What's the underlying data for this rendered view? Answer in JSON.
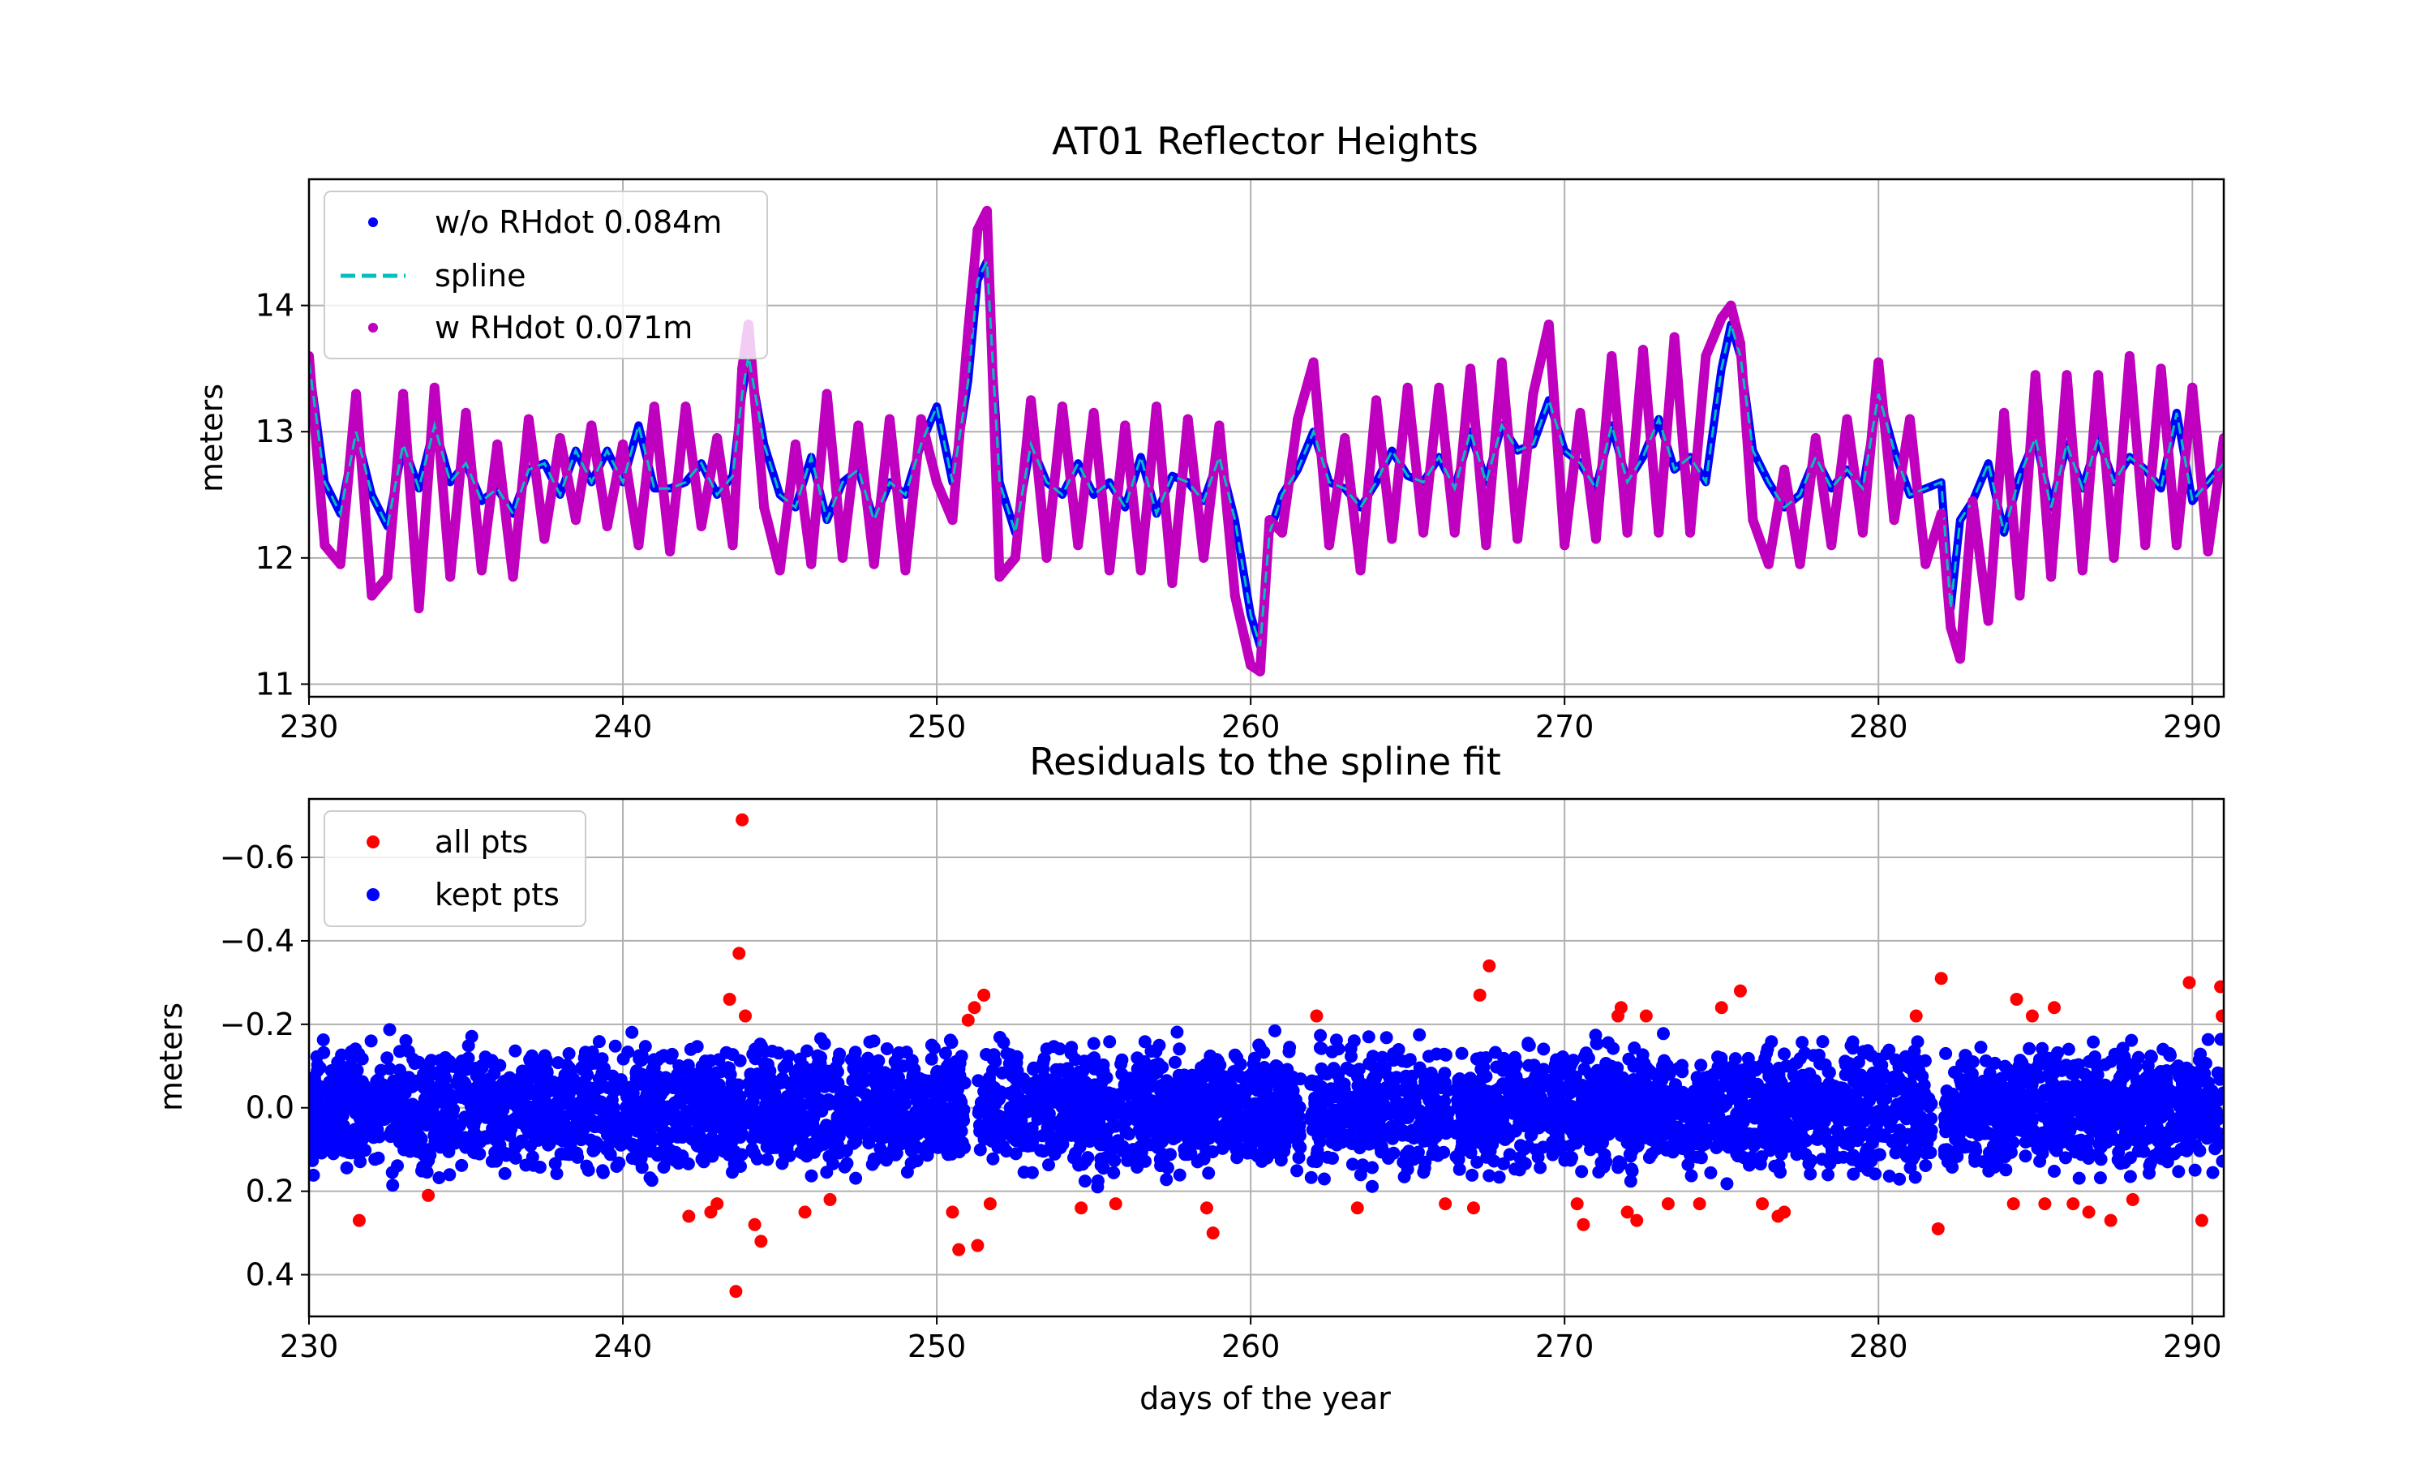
{
  "chart_data": [
    {
      "type": "scatter",
      "title": "AT01 Reflector Heights",
      "xlabel": "",
      "ylabel": "meters",
      "xlim": [
        230,
        291
      ],
      "ylim": [
        15,
        10.9
      ],
      "y_axis_inverted": true,
      "grid": true,
      "legend_placement": "top-left",
      "x_ticks": [
        230,
        240,
        250,
        260,
        270,
        280,
        290
      ],
      "y_ticks": [
        11,
        12,
        13,
        14
      ],
      "series": [
        {
          "name": "w/o RHdot 0.084m",
          "marker": "dot",
          "color": "#0000ff",
          "x": [
            230,
            230.5,
            231,
            231.5,
            232,
            232.5,
            233,
            233.5,
            234,
            234.5,
            235,
            235.5,
            236,
            236.5,
            237,
            237.5,
            238,
            238.5,
            239,
            239.5,
            240,
            240.5,
            241,
            241.5,
            242,
            242.5,
            243,
            243.5,
            243.8,
            244,
            244.5,
            245,
            245.5,
            246,
            246.5,
            247,
            247.5,
            248,
            248.5,
            249,
            249.5,
            250,
            250.5,
            251,
            251.3,
            251.6,
            252,
            252.5,
            253,
            253.5,
            254,
            254.5,
            255,
            255.5,
            256,
            256.5,
            257,
            257.5,
            258,
            258.5,
            259,
            259.5,
            260,
            260.3,
            260.6,
            261,
            261.5,
            262,
            262.5,
            263,
            263.5,
            264,
            264.5,
            265,
            265.5,
            266,
            266.5,
            267,
            267.5,
            268,
            268.5,
            269,
            269.5,
            270,
            270.5,
            271,
            271.5,
            272,
            272.5,
            273,
            273.5,
            274,
            274.5,
            275,
            275.3,
            275.6,
            276,
            276.5,
            277,
            277.5,
            278,
            278.5,
            279,
            279.5,
            280,
            280.5,
            281,
            281.5,
            282,
            282.3,
            282.6,
            283,
            283.5,
            284,
            284.5,
            285,
            285.5,
            286,
            286.5,
            287,
            287.5,
            288,
            288.5,
            289,
            289.5,
            290,
            290.5,
            291
          ],
          "y": [
            13.55,
            12.6,
            12.35,
            13.0,
            12.5,
            12.25,
            12.9,
            12.55,
            13.05,
            12.6,
            12.75,
            12.45,
            12.55,
            12.35,
            12.7,
            12.75,
            12.5,
            12.85,
            12.6,
            12.85,
            12.6,
            13.05,
            12.55,
            12.55,
            12.6,
            12.75,
            12.5,
            12.65,
            13.3,
            13.6,
            12.9,
            12.5,
            12.4,
            12.8,
            12.3,
            12.6,
            12.7,
            12.3,
            12.6,
            12.5,
            12.9,
            13.2,
            12.6,
            13.4,
            14.2,
            14.35,
            12.6,
            12.2,
            12.9,
            12.6,
            12.5,
            12.75,
            12.5,
            12.6,
            12.4,
            12.8,
            12.35,
            12.65,
            12.6,
            12.45,
            12.8,
            12.3,
            11.55,
            11.3,
            12.2,
            12.5,
            12.7,
            13.0,
            12.6,
            12.55,
            12.4,
            12.6,
            12.85,
            12.65,
            12.6,
            12.8,
            12.55,
            13.0,
            12.6,
            13.05,
            12.85,
            12.9,
            13.25,
            12.85,
            12.75,
            12.55,
            13.05,
            12.6,
            12.8,
            13.1,
            12.7,
            12.8,
            12.6,
            13.5,
            13.85,
            13.6,
            12.85,
            12.6,
            12.4,
            12.5,
            12.8,
            12.55,
            12.7,
            12.55,
            13.3,
            12.85,
            12.5,
            12.55,
            12.6,
            11.6,
            12.3,
            12.45,
            12.75,
            12.2,
            12.65,
            12.95,
            12.4,
            12.9,
            12.55,
            12.95,
            12.6,
            12.8,
            12.7,
            12.55,
            13.15,
            12.45,
            12.6,
            12.75
          ]
        },
        {
          "name": "spline",
          "line_style": "dashed",
          "color": "#00bfbf",
          "x": [
            230,
            230.5,
            231,
            231.5,
            232,
            232.5,
            233,
            233.5,
            234,
            234.5,
            235,
            235.5,
            236,
            236.5,
            237,
            237.5,
            238,
            238.5,
            239,
            239.5,
            240,
            240.5,
            241,
            241.5,
            242,
            242.5,
            243,
            243.5,
            243.8,
            244,
            244.5,
            245,
            245.5,
            246,
            246.5,
            247,
            247.5,
            248,
            248.5,
            249,
            249.5,
            250,
            250.5,
            251,
            251.3,
            251.6,
            252,
            252.5,
            253,
            253.5,
            254,
            254.5,
            255,
            255.5,
            256,
            256.5,
            257,
            257.5,
            258,
            258.5,
            259,
            259.5,
            260,
            260.3,
            260.6,
            261,
            261.5,
            262,
            262.5,
            263,
            263.5,
            264,
            264.5,
            265,
            265.5,
            266,
            266.5,
            267,
            267.5,
            268,
            268.5,
            269,
            269.5,
            270,
            270.5,
            271,
            271.5,
            272,
            272.5,
            273,
            273.5,
            274,
            274.5,
            275,
            275.3,
            275.6,
            276,
            276.5,
            277,
            277.5,
            278,
            278.5,
            279,
            279.5,
            280,
            280.5,
            281,
            281.5,
            282,
            282.3,
            282.6,
            283,
            283.5,
            284,
            284.5,
            285,
            285.5,
            286,
            286.5,
            287,
            287.5,
            288,
            288.5,
            289,
            289.5,
            290,
            290.5,
            291
          ],
          "y": [
            13.55,
            12.6,
            12.35,
            13.0,
            12.5,
            12.25,
            12.9,
            12.55,
            13.05,
            12.6,
            12.75,
            12.45,
            12.55,
            12.35,
            12.7,
            12.75,
            12.5,
            12.85,
            12.6,
            12.85,
            12.6,
            13.05,
            12.55,
            12.55,
            12.6,
            12.75,
            12.5,
            12.65,
            13.3,
            13.6,
            12.9,
            12.5,
            12.4,
            12.8,
            12.3,
            12.6,
            12.7,
            12.3,
            12.6,
            12.5,
            12.9,
            13.2,
            12.6,
            13.4,
            14.2,
            14.35,
            12.6,
            12.2,
            12.9,
            12.6,
            12.5,
            12.75,
            12.5,
            12.6,
            12.4,
            12.8,
            12.35,
            12.65,
            12.6,
            12.45,
            12.8,
            12.3,
            11.55,
            11.3,
            12.2,
            12.5,
            12.7,
            13.0,
            12.6,
            12.55,
            12.4,
            12.6,
            12.85,
            12.65,
            12.6,
            12.8,
            12.55,
            13.0,
            12.6,
            13.05,
            12.85,
            12.9,
            13.25,
            12.85,
            12.75,
            12.55,
            13.05,
            12.6,
            12.8,
            13.1,
            12.7,
            12.8,
            12.6,
            13.5,
            13.85,
            13.6,
            12.85,
            12.6,
            12.4,
            12.5,
            12.8,
            12.55,
            12.7,
            12.55,
            13.3,
            12.85,
            12.5,
            12.55,
            12.6,
            11.6,
            12.3,
            12.45,
            12.75,
            12.2,
            12.65,
            12.95,
            12.4,
            12.9,
            12.55,
            12.95,
            12.6,
            12.8,
            12.7,
            12.55,
            13.15,
            12.45,
            12.6,
            12.75
          ]
        },
        {
          "name": "w RHdot 0.071m",
          "marker": "dot",
          "color": "#bf00bf",
          "x": [
            230,
            230.5,
            231,
            231.5,
            232,
            232.5,
            233,
            233.5,
            234,
            234.5,
            235,
            235.5,
            236,
            236.5,
            237,
            237.5,
            238,
            238.5,
            239,
            239.5,
            240,
            240.5,
            241,
            241.5,
            242,
            242.5,
            243,
            243.5,
            243.8,
            244,
            244.5,
            245,
            245.5,
            246,
            246.5,
            247,
            247.5,
            248,
            248.5,
            249,
            249.5,
            250,
            250.5,
            251,
            251.3,
            251.6,
            252,
            252.5,
            253,
            253.5,
            254,
            254.5,
            255,
            255.5,
            256,
            256.5,
            257,
            257.5,
            258,
            258.5,
            259,
            259.5,
            260,
            260.3,
            260.6,
            261,
            261.5,
            262,
            262.5,
            263,
            263.5,
            264,
            264.5,
            265,
            265.5,
            266,
            266.5,
            267,
            267.5,
            268,
            268.5,
            269,
            269.5,
            270,
            270.5,
            271,
            271.5,
            272,
            272.5,
            273,
            273.5,
            274,
            274.5,
            275,
            275.3,
            275.6,
            276,
            276.5,
            277,
            277.5,
            278,
            278.5,
            279,
            279.5,
            280,
            280.5,
            281,
            281.5,
            282,
            282.3,
            282.6,
            283,
            283.5,
            284,
            284.5,
            285,
            285.5,
            286,
            286.5,
            287,
            287.5,
            288,
            288.5,
            289,
            289.5,
            290,
            290.5,
            291
          ],
          "y": [
            13.6,
            12.1,
            11.95,
            13.3,
            11.7,
            11.85,
            13.3,
            11.6,
            13.35,
            11.85,
            13.15,
            11.9,
            12.9,
            11.85,
            13.1,
            12.15,
            12.95,
            12.3,
            13.05,
            12.25,
            12.9,
            12.1,
            13.2,
            12.05,
            13.2,
            12.25,
            12.95,
            12.1,
            13.5,
            13.85,
            12.4,
            11.9,
            12.9,
            11.95,
            13.3,
            12.0,
            13.05,
            11.95,
            13.1,
            11.9,
            13.1,
            12.6,
            12.3,
            13.8,
            14.6,
            14.75,
            11.85,
            12.0,
            13.25,
            12.0,
            13.2,
            12.1,
            13.15,
            11.9,
            13.05,
            11.9,
            13.2,
            11.8,
            13.1,
            12.0,
            13.05,
            11.7,
            11.15,
            11.1,
            12.3,
            12.2,
            13.1,
            13.55,
            12.1,
            12.95,
            11.9,
            13.25,
            12.15,
            13.35,
            12.2,
            13.35,
            12.2,
            13.5,
            12.1,
            13.55,
            12.15,
            13.3,
            13.85,
            12.1,
            13.15,
            12.15,
            13.6,
            12.2,
            13.65,
            12.2,
            13.75,
            12.2,
            13.6,
            13.9,
            14.0,
            13.7,
            12.3,
            11.95,
            12.7,
            11.95,
            12.95,
            12.1,
            13.1,
            12.2,
            13.55,
            12.3,
            13.1,
            11.95,
            12.35,
            11.45,
            11.2,
            12.45,
            11.5,
            13.15,
            11.7,
            13.45,
            11.85,
            13.45,
            11.9,
            13.45,
            12.0,
            13.6,
            12.1,
            13.5,
            12.1,
            13.35,
            12.05,
            12.95
          ]
        }
      ]
    },
    {
      "type": "scatter",
      "title": "Residuals to the spline fit",
      "xlabel": "days of the year",
      "ylabel": "meters",
      "xlim": [
        230,
        291
      ],
      "ylim": [
        -0.74,
        0.5
      ],
      "grid": true,
      "legend_placement": "top-left",
      "x_ticks": [
        230,
        240,
        250,
        260,
        270,
        280,
        290
      ],
      "y_ticks": [
        0.4,
        0.2,
        0.0,
        -0.2,
        -0.4,
        -0.6
      ],
      "y_tick_labels": [
        "0.4",
        "0.2",
        "0.0",
        "−0.2",
        "−0.4",
        "−0.6"
      ],
      "series": [
        {
          "name": "all pts",
          "marker": "dot",
          "color": "#ff0000",
          "x": [
            231.6,
            233.8,
            242.1,
            242.8,
            243.0,
            243.4,
            243.6,
            243.7,
            243.8,
            243.9,
            244.2,
            244.4,
            245.8,
            246.6,
            250.5,
            250.7,
            251.0,
            251.2,
            251.3,
            251.5,
            251.7,
            254.6,
            255.7,
            258.6,
            258.8,
            262.1,
            263.4,
            266.2,
            267.1,
            267.3,
            267.6,
            270.4,
            270.6,
            271.7,
            271.8,
            272.0,
            272.3,
            272.6,
            273.3,
            274.3,
            275.0,
            275.6,
            276.3,
            276.8,
            277.0,
            281.2,
            281.9,
            282.0,
            284.3,
            284.4,
            284.9,
            285.3,
            285.6,
            286.2,
            286.7,
            287.4,
            288.1,
            289.9,
            290.3,
            290.9,
            290.95
          ],
          "y": [
            0.27,
            0.21,
            0.26,
            0.25,
            0.23,
            -0.26,
            0.44,
            -0.37,
            -0.69,
            -0.22,
            0.28,
            0.32,
            0.25,
            0.22,
            0.25,
            0.34,
            -0.21,
            -0.24,
            0.33,
            -0.27,
            0.23,
            0.24,
            0.23,
            0.24,
            0.3,
            -0.22,
            0.24,
            0.23,
            0.24,
            -0.27,
            -0.34,
            0.23,
            0.28,
            -0.22,
            -0.24,
            0.25,
            0.27,
            -0.22,
            0.23,
            0.23,
            -0.24,
            -0.28,
            0.23,
            0.26,
            0.25,
            -0.22,
            0.29,
            -0.31,
            0.23,
            -0.26,
            -0.22,
            0.23,
            -0.24,
            0.23,
            0.25,
            0.27,
            0.22,
            -0.3,
            0.27,
            -0.29,
            -0.22
          ]
        },
        {
          "name": "kept pts",
          "marker": "dot",
          "color": "#0000ff",
          "band": [
            -0.2,
            0.21
          ],
          "x_gaps": [
            [
              243.8,
              244.0
            ],
            [
              250.9,
              251.3
            ],
            [
              261.6,
              261.9
            ],
            [
              266.3,
              266.5
            ],
            [
              281.7,
              282.1
            ]
          ]
        }
      ]
    }
  ]
}
